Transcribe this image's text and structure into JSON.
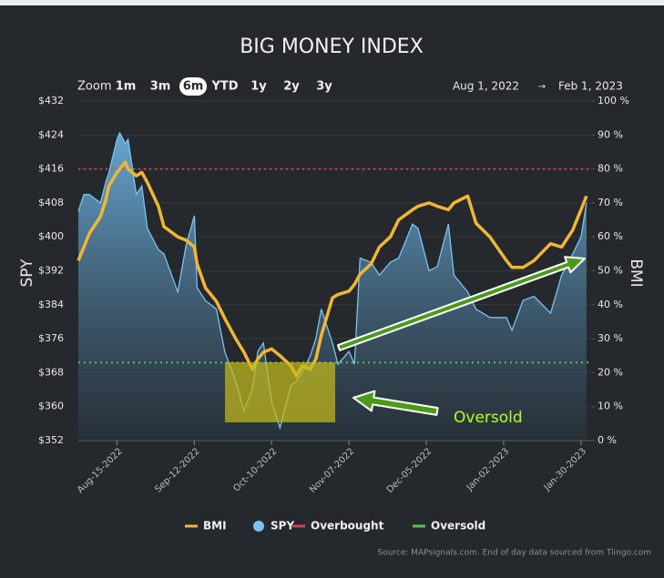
{
  "chart_data": {
    "type": "line",
    "title": "BIG MONEY INDEX",
    "zoom_label": "Zoom",
    "zoom_options": [
      "1m",
      "3m",
      "6m",
      "YTD",
      "1y",
      "2y",
      "3y"
    ],
    "zoom_selected": "6m",
    "range_start": "Aug 1, 2022",
    "range_arrow": "→",
    "range_end": "Feb 1, 2023",
    "y_label": "SPY",
    "y2_label": "BMI",
    "x": [
      "2022-08-01",
      "2022-08-03",
      "2022-08-05",
      "2022-08-09",
      "2022-08-11",
      "2022-08-12",
      "2022-08-15",
      "2022-08-16",
      "2022-08-18",
      "2022-08-19",
      "2022-08-22",
      "2022-08-24",
      "2022-08-26",
      "2022-08-30",
      "2022-09-01",
      "2022-09-06",
      "2022-09-09",
      "2022-09-12",
      "2022-09-13",
      "2022-09-16",
      "2022-09-20",
      "2022-09-23",
      "2022-09-27",
      "2022-09-30",
      "2022-10-03",
      "2022-10-05",
      "2022-10-07",
      "2022-10-10",
      "2022-10-13",
      "2022-10-17",
      "2022-10-19",
      "2022-10-21",
      "2022-10-24",
      "2022-10-26",
      "2022-10-28",
      "2022-11-01",
      "2022-11-03",
      "2022-11-07",
      "2022-11-09",
      "2022-11-11",
      "2022-11-15",
      "2022-11-18",
      "2022-11-22",
      "2022-11-25",
      "2022-11-30",
      "2022-12-02",
      "2022-12-06",
      "2022-12-09",
      "2022-12-13",
      "2022-12-15",
      "2022-12-20",
      "2022-12-23",
      "2022-12-28",
      "2023-01-03",
      "2023-01-05",
      "2023-01-09",
      "2023-01-13",
      "2023-01-19",
      "2023-01-23",
      "2023-01-27",
      "2023-01-30",
      "2023-02-01"
    ],
    "xlim": [
      "2022-08-01",
      "2023-02-03"
    ],
    "xticks": [
      {
        "value": "2022-08-15",
        "label": "Aug-15-2022"
      },
      {
        "value": "2022-09-12",
        "label": "Sep-12-2022"
      },
      {
        "value": "2022-10-10",
        "label": "Oct-10-2022"
      },
      {
        "value": "2022-11-07",
        "label": "Nov-07-2022"
      },
      {
        "value": "2022-12-05",
        "label": "Dec-05-2022"
      },
      {
        "value": "2023-01-02",
        "label": "Jan-02-2023"
      },
      {
        "value": "2023-01-30",
        "label": "Jan-30-2023"
      }
    ],
    "ylim": [
      352,
      432
    ],
    "yticks": [
      {
        "value": 432,
        "label": "$432"
      },
      {
        "value": 424,
        "label": "$424"
      },
      {
        "value": 416,
        "label": "$416"
      },
      {
        "value": 408,
        "label": "$408"
      },
      {
        "value": 400,
        "label": "$400"
      },
      {
        "value": 392,
        "label": "$392"
      },
      {
        "value": 384,
        "label": "$384"
      },
      {
        "value": 376,
        "label": "$376"
      },
      {
        "value": 368,
        "label": "$368"
      },
      {
        "value": 360,
        "label": "$360"
      },
      {
        "value": 352,
        "label": "$352"
      }
    ],
    "y2lim": [
      0,
      100
    ],
    "y2ticks": [
      {
        "value": 100,
        "label": "100 %"
      },
      {
        "value": 90,
        "label": "90 %"
      },
      {
        "value": 80,
        "label": "80 %"
      },
      {
        "value": 70,
        "label": "70 %"
      },
      {
        "value": 60,
        "label": "60 %"
      },
      {
        "value": 50,
        "label": "50 %"
      },
      {
        "value": 40,
        "label": "40 %"
      },
      {
        "value": 30,
        "label": "30 %"
      },
      {
        "value": 20,
        "label": "20 %"
      },
      {
        "value": 10,
        "label": "10 %"
      },
      {
        "value": 0,
        "label": "0 %"
      }
    ],
    "grid": true,
    "series": [
      {
        "name": "SPY",
        "type": "area",
        "color": "#7cc3ec",
        "values": [
          406,
          410,
          410,
          408,
          413,
          415,
          423,
          424.5,
          422,
          423,
          410,
          412,
          402,
          397,
          396,
          387,
          398,
          405,
          388,
          385,
          383,
          373,
          366,
          359,
          364,
          373,
          375,
          361,
          355,
          365,
          366,
          368,
          372,
          376,
          383,
          375,
          370,
          373,
          370,
          395,
          394,
          391,
          394,
          395,
          403,
          402,
          392,
          393,
          403,
          391,
          387,
          383,
          381,
          381,
          378,
          385,
          386,
          382,
          391,
          396,
          400,
          408
        ]
      },
      {
        "name": "BMI",
        "type": "line",
        "axis": "y2",
        "color": "#f2b632",
        "values": [
          53,
          57,
          61,
          66,
          71,
          75,
          79,
          80,
          82,
          80,
          78,
          79,
          76,
          69,
          63,
          60,
          59,
          57,
          52,
          45,
          41,
          36,
          30,
          26,
          21,
          24,
          26,
          27,
          25,
          22,
          19,
          22,
          21,
          24,
          31,
          42,
          43,
          44,
          46,
          49,
          52,
          57,
          60,
          65,
          68,
          69,
          70,
          69,
          68,
          70,
          72,
          64,
          60,
          53,
          51,
          51,
          53,
          58,
          57,
          62,
          68,
          72
        ]
      }
    ],
    "reference_lines": [
      {
        "name": "Overbought",
        "value": 80,
        "axis": "y2",
        "color": "#d6405b"
      },
      {
        "name": "Oversold",
        "value": 23,
        "axis": "y2",
        "color": "#4cc94c"
      }
    ],
    "annotation": "Oversold",
    "source": "Source: MAPsignals.com. End of day data sourced from Tiingo.com"
  }
}
